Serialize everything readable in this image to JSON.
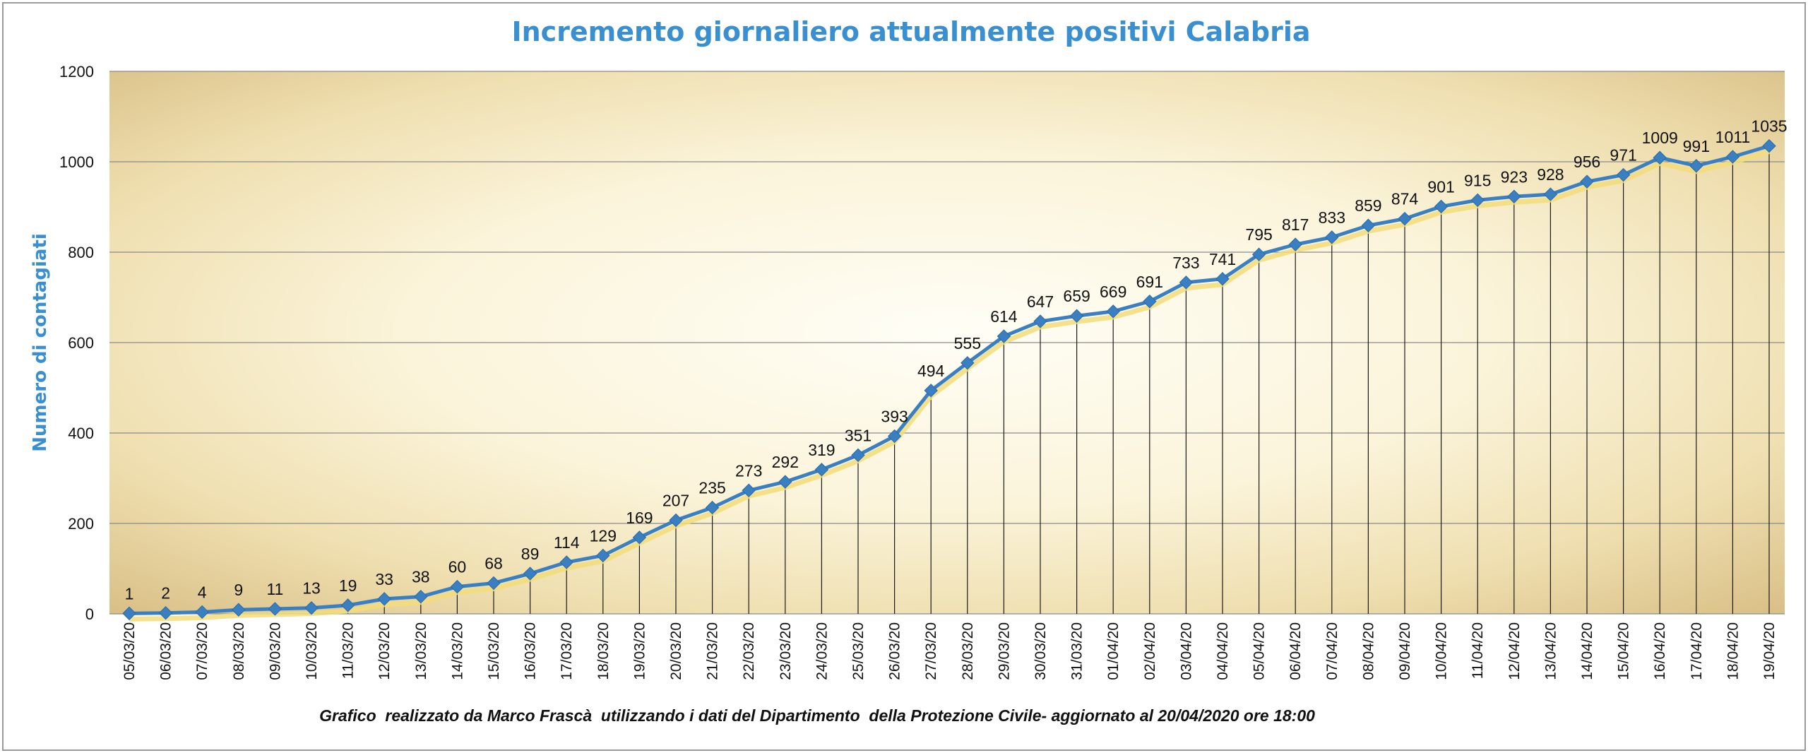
{
  "chart_data": {
    "type": "line",
    "title": "Incremento giornaliero attualmente positivi Calabria",
    "xlabel": "",
    "ylabel": "Numero di contagiati",
    "ylim": [
      0,
      1200
    ],
    "yticks": [
      0,
      200,
      400,
      600,
      800,
      1000,
      1200
    ],
    "grid": true,
    "legend": "none",
    "caption": "Grafico  realizzato da Marco Frascà  utilizzando i dati del Dipartimento  della Protezione Civile- aggiornato al 20/04/2020 ore 18:00",
    "categories": [
      "05/03/20",
      "06/03/20",
      "07/03/20",
      "08/03/20",
      "09/03/20",
      "10/03/20",
      "11/03/20",
      "12/03/20",
      "13/03/20",
      "14/03/20",
      "15/03/20",
      "16/03/20",
      "17/03/20",
      "18/03/20",
      "19/03/20",
      "20/03/20",
      "21/03/20",
      "22/03/20",
      "23/03/20",
      "24/03/20",
      "25/03/20",
      "26/03/20",
      "27/03/20",
      "28/03/20",
      "29/03/20",
      "30/03/20",
      "31/03/20",
      "01/04/20",
      "02/04/20",
      "03/04/20",
      "04/04/20",
      "05/04/20",
      "06/04/20",
      "07/04/20",
      "08/04/20",
      "09/04/20",
      "10/04/20",
      "11/04/20",
      "12/04/20",
      "13/04/20",
      "14/04/20",
      "15/04/20",
      "16/04/20",
      "17/04/20",
      "18/04/20",
      "19/04/20"
    ],
    "values": [
      1,
      2,
      4,
      9,
      11,
      13,
      19,
      33,
      38,
      60,
      68,
      89,
      114,
      129,
      169,
      207,
      235,
      273,
      292,
      319,
      351,
      393,
      494,
      555,
      614,
      647,
      659,
      669,
      691,
      733,
      741,
      795,
      817,
      833,
      859,
      874,
      901,
      915,
      923,
      928,
      956,
      971,
      1009,
      991,
      1011,
      1035
    ],
    "colors": {
      "line": "#3a7fc1",
      "marker": "#3a7fc1",
      "shadow": "#f3dc7a",
      "grid": "#8a8a8a",
      "title": "#3a8fd0"
    }
  }
}
